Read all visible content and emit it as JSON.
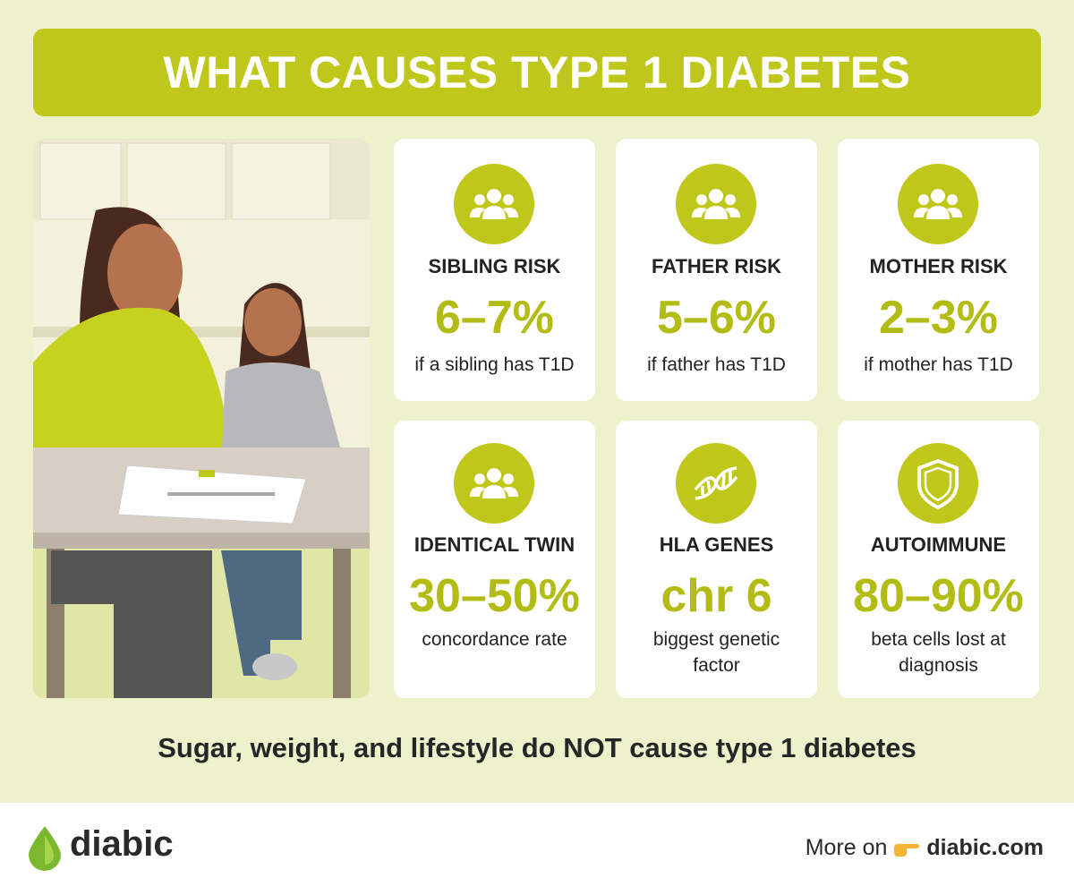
{
  "header": {
    "title": "WHAT CAUSES TYPE 1 DIABETES"
  },
  "cards": [
    {
      "label": "SIBLING RISK",
      "stat": "6–7%",
      "note": "if a sibling has T1D"
    },
    {
      "label": "FATHER RISK",
      "stat": "5–6%",
      "note": "if father has T1D"
    },
    {
      "label": "MOTHER RISK",
      "stat": "2–3%",
      "note": "if mother has T1D"
    },
    {
      "label": "IDENTICAL TWIN",
      "stat": "30–50%",
      "note": "concordance rate"
    },
    {
      "label": "HLA GENES",
      "stat": "chr 6",
      "note": "biggest genetic factor"
    },
    {
      "label": "AUTOIMMUNE",
      "stat": "80–90%",
      "note": "beta cells lost at diagnosis"
    }
  ],
  "footer_note": "Sugar, weight, and lifestyle do NOT cause type 1 diabetes",
  "brand": {
    "name": "diabic",
    "more_on": "More on",
    "link": "diabic.com"
  }
}
